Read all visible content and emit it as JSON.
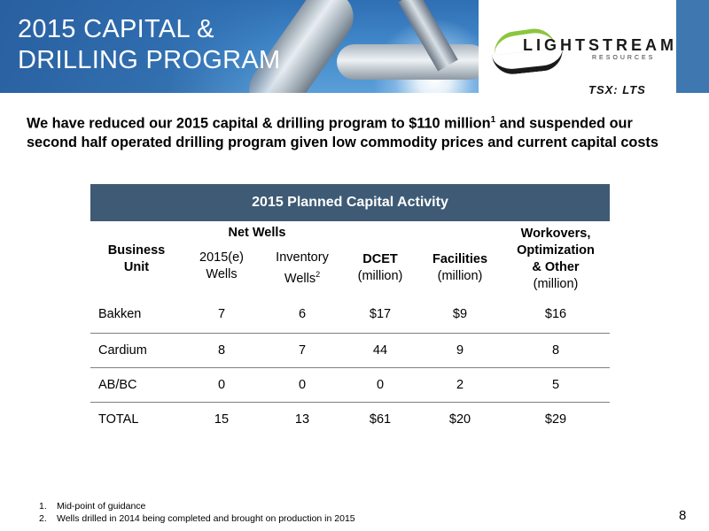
{
  "slide": {
    "title_line1": "2015 CAPITAL &",
    "title_line2": "DRILLING PROGRAM",
    "logo_text": "LIGHTSTREAM",
    "logo_sub": "RESOURCES",
    "ticker": "TSX: LTS",
    "intro_part1": "We have reduced our 2015 capital & drilling program to $110 million",
    "intro_sup": "1",
    "intro_part2": " and suspended our second half operated drilling program given low commodity prices and current capital costs",
    "page_number": "8"
  },
  "table": {
    "title": "2015 Planned Capital Activity",
    "headers": {
      "business_unit_line1": "Business",
      "business_unit_line2": "Unit",
      "net_wells": "Net Wells",
      "wells_2015_line1": "2015(e)",
      "wells_2015_line2": "Wells",
      "inventory_line1": "Inventory",
      "inventory_line2": "Wells",
      "inventory_sup": "2",
      "dcet": "DCET",
      "dcet_unit": "(million)",
      "facilities": "Facilities",
      "facilities_unit": "(million)",
      "workovers_line1": "Workovers,",
      "workovers_line2": "Optimization",
      "workovers_line3": "& Other",
      "workovers_unit": "(million)"
    },
    "rows": [
      {
        "unit": "Bakken",
        "wells_2015": "7",
        "inventory": "6",
        "dcet": "$17",
        "facilities": "$9",
        "workovers": "$16"
      },
      {
        "unit": "Cardium",
        "wells_2015": "8",
        "inventory": "7",
        "dcet": "44",
        "facilities": "9",
        "workovers": "8"
      },
      {
        "unit": "AB/BC",
        "wells_2015": "0",
        "inventory": "0",
        "dcet": "0",
        "facilities": "2",
        "workovers": "5"
      },
      {
        "unit": "TOTAL",
        "wells_2015": "15",
        "inventory": "13",
        "dcet": "$61",
        "facilities": "$20",
        "workovers": "$29"
      }
    ]
  },
  "footnotes": [
    {
      "num": "1.",
      "text": "Mid-point of guidance"
    },
    {
      "num": "2.",
      "text": "Wells drilled in 2014 being completed and brought on production in 2015"
    }
  ],
  "colors": {
    "table_header_bg": "#3e5a75",
    "banner_blue": "#3f78b0",
    "logo_green": "#8cc63f"
  }
}
